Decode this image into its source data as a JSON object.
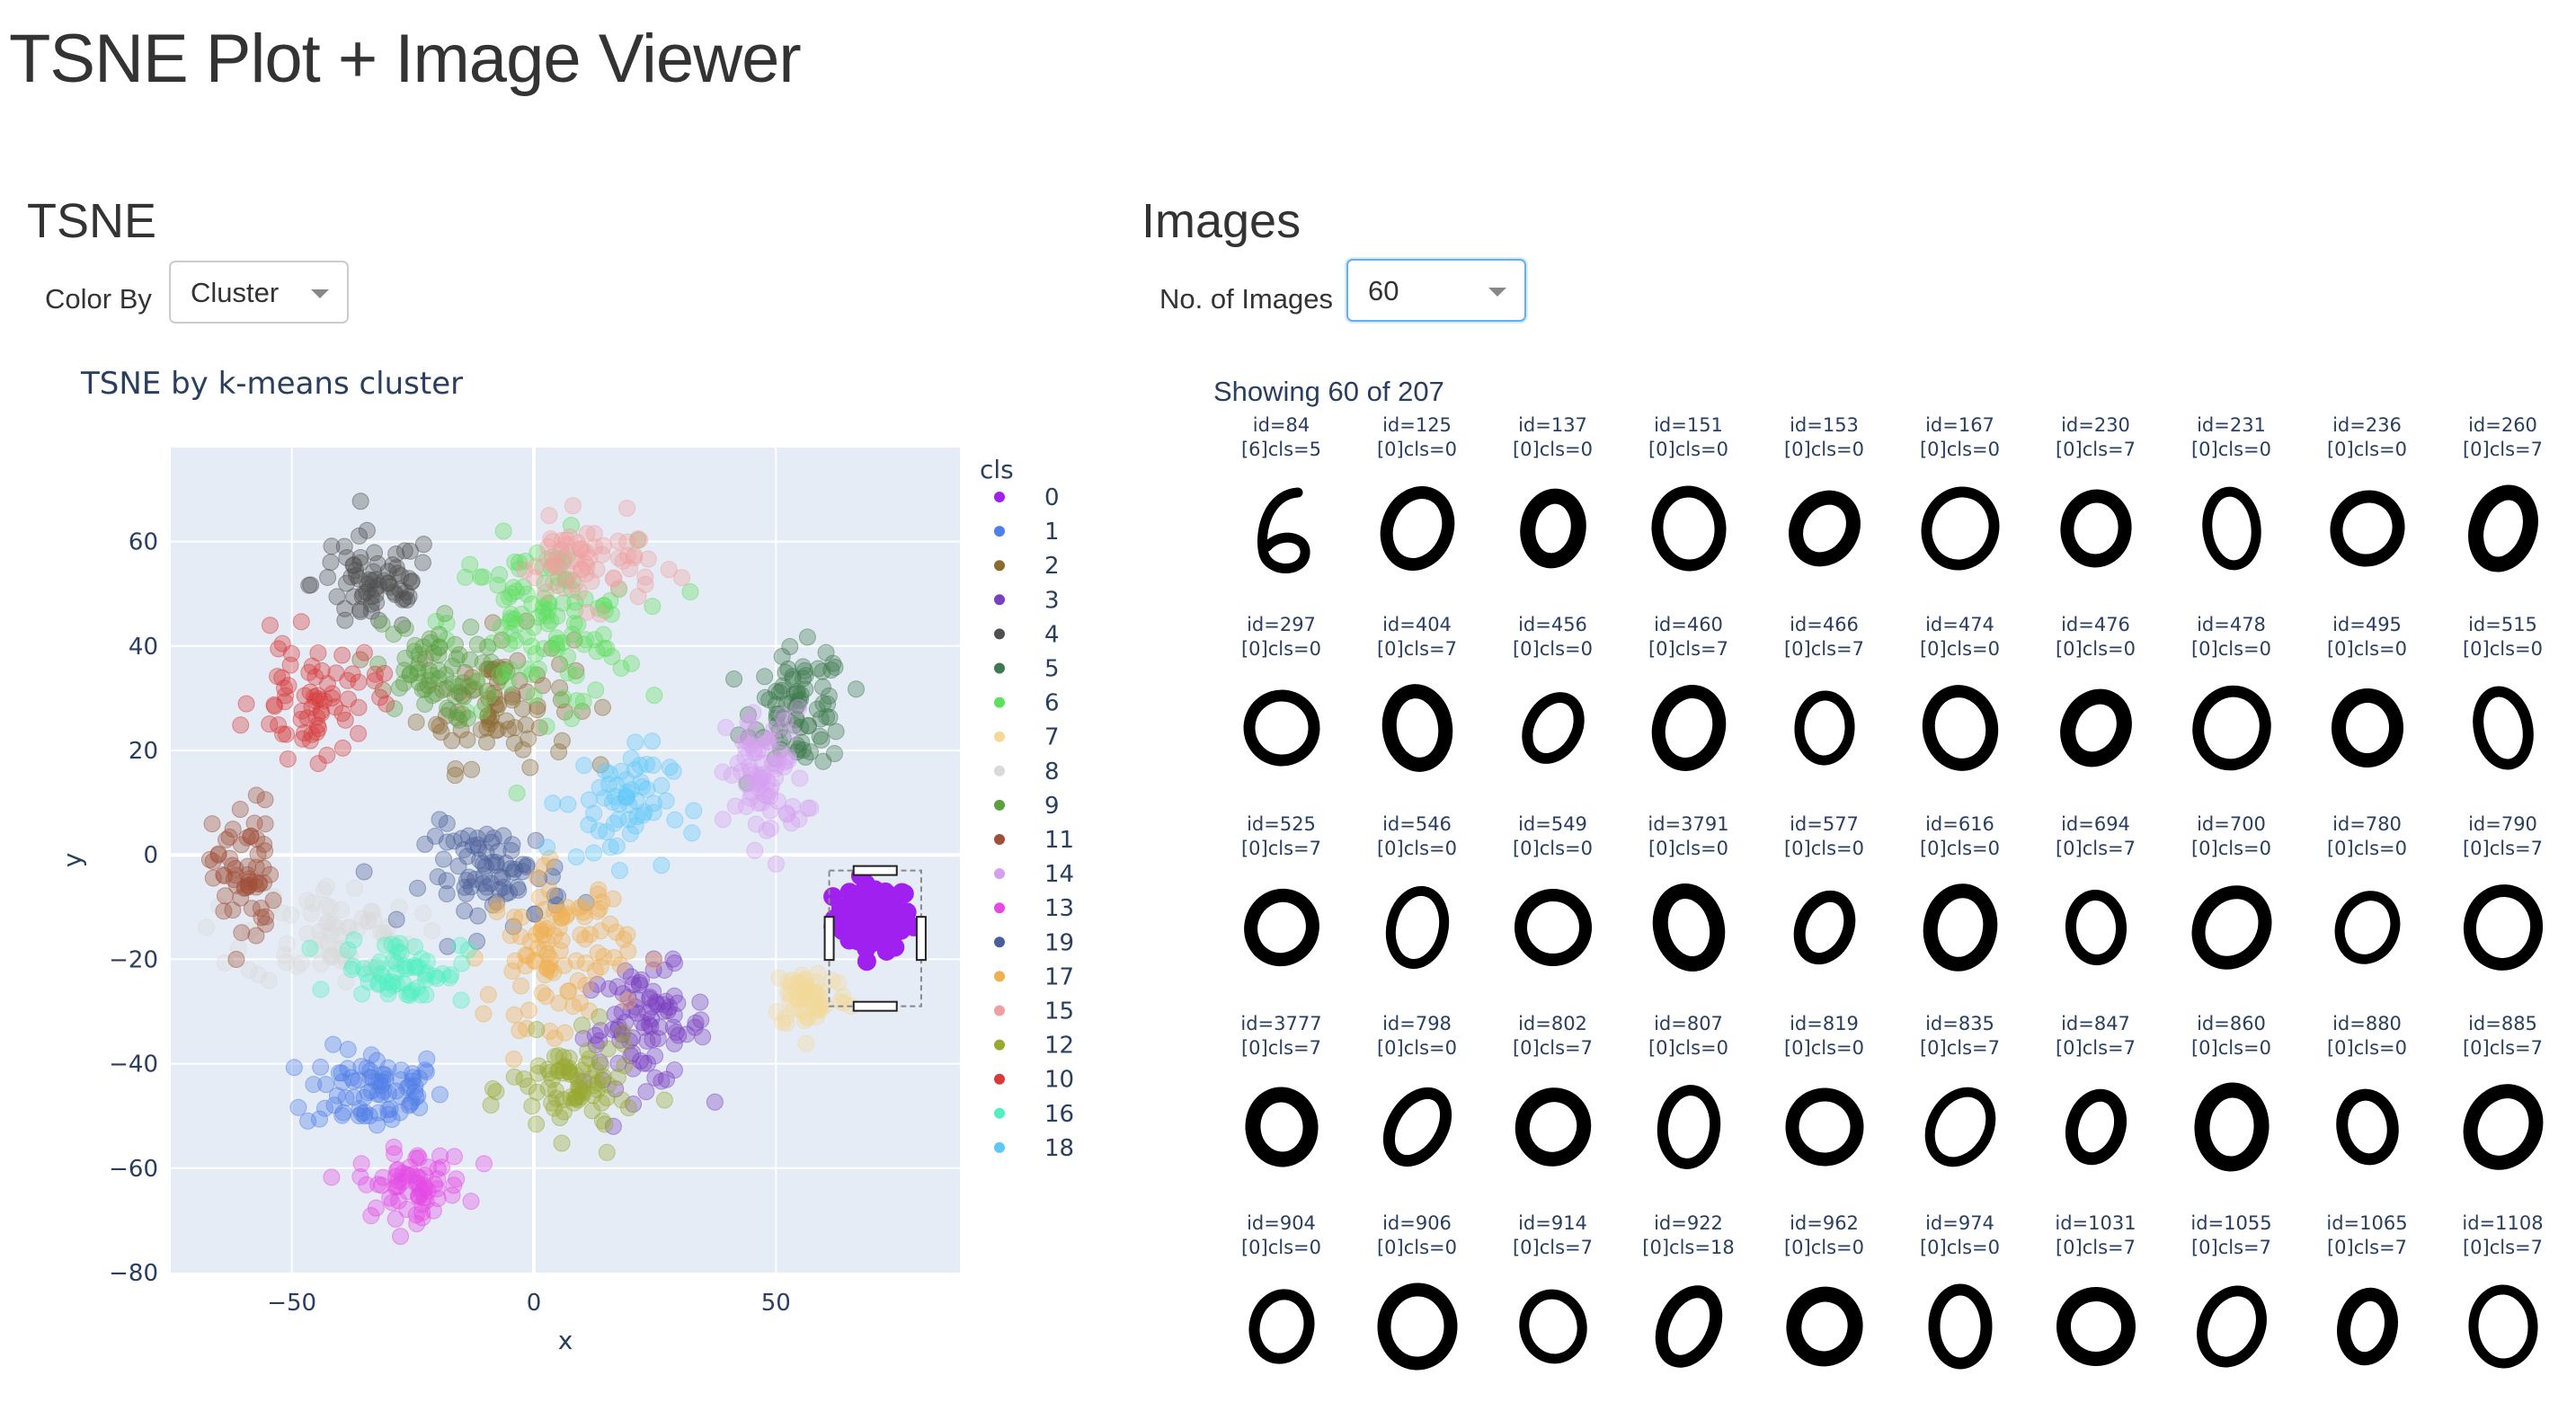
{
  "app": {
    "title": "TSNE Plot + Image Viewer"
  },
  "tsne": {
    "heading": "TSNE",
    "color_by_label": "Color By",
    "color_by_value": "Cluster"
  },
  "images": {
    "heading": "Images",
    "count_label": "No. of Images",
    "count_value": "60",
    "showing_text": "Showing 60 of 207",
    "items": [
      {
        "id": "id=84",
        "cls": "[6]cls=5",
        "digit": "6"
      },
      {
        "id": "id=125",
        "cls": "[0]cls=0",
        "digit": "0"
      },
      {
        "id": "id=137",
        "cls": "[0]cls=0",
        "digit": "0"
      },
      {
        "id": "id=151",
        "cls": "[0]cls=0",
        "digit": "0"
      },
      {
        "id": "id=153",
        "cls": "[0]cls=0",
        "digit": "0"
      },
      {
        "id": "id=167",
        "cls": "[0]cls=0",
        "digit": "0"
      },
      {
        "id": "id=230",
        "cls": "[0]cls=7",
        "digit": "0"
      },
      {
        "id": "id=231",
        "cls": "[0]cls=0",
        "digit": "0"
      },
      {
        "id": "id=236",
        "cls": "[0]cls=0",
        "digit": "0"
      },
      {
        "id": "id=260",
        "cls": "[0]cls=7",
        "digit": "0"
      },
      {
        "id": "id=297",
        "cls": "[0]cls=0",
        "digit": "0"
      },
      {
        "id": "id=404",
        "cls": "[0]cls=7",
        "digit": "0"
      },
      {
        "id": "id=456",
        "cls": "[0]cls=0",
        "digit": "0"
      },
      {
        "id": "id=460",
        "cls": "[0]cls=7",
        "digit": "0"
      },
      {
        "id": "id=466",
        "cls": "[0]cls=7",
        "digit": "0"
      },
      {
        "id": "id=474",
        "cls": "[0]cls=0",
        "digit": "0"
      },
      {
        "id": "id=476",
        "cls": "[0]cls=0",
        "digit": "0"
      },
      {
        "id": "id=478",
        "cls": "[0]cls=0",
        "digit": "0"
      },
      {
        "id": "id=495",
        "cls": "[0]cls=0",
        "digit": "0"
      },
      {
        "id": "id=515",
        "cls": "[0]cls=0",
        "digit": "0"
      },
      {
        "id": "id=525",
        "cls": "[0]cls=7",
        "digit": "0"
      },
      {
        "id": "id=546",
        "cls": "[0]cls=0",
        "digit": "0"
      },
      {
        "id": "id=549",
        "cls": "[0]cls=0",
        "digit": "0"
      },
      {
        "id": "id=3791",
        "cls": "[0]cls=0",
        "digit": "0"
      },
      {
        "id": "id=577",
        "cls": "[0]cls=0",
        "digit": "0"
      },
      {
        "id": "id=616",
        "cls": "[0]cls=0",
        "digit": "0"
      },
      {
        "id": "id=694",
        "cls": "[0]cls=7",
        "digit": "0"
      },
      {
        "id": "id=700",
        "cls": "[0]cls=0",
        "digit": "0"
      },
      {
        "id": "id=780",
        "cls": "[0]cls=0",
        "digit": "0"
      },
      {
        "id": "id=790",
        "cls": "[0]cls=7",
        "digit": "0"
      },
      {
        "id": "id=3777",
        "cls": "[0]cls=7",
        "digit": "0"
      },
      {
        "id": "id=798",
        "cls": "[0]cls=0",
        "digit": "0"
      },
      {
        "id": "id=802",
        "cls": "[0]cls=7",
        "digit": "0"
      },
      {
        "id": "id=807",
        "cls": "[0]cls=0",
        "digit": "0"
      },
      {
        "id": "id=819",
        "cls": "[0]cls=0",
        "digit": "0"
      },
      {
        "id": "id=835",
        "cls": "[0]cls=7",
        "digit": "0"
      },
      {
        "id": "id=847",
        "cls": "[0]cls=7",
        "digit": "0"
      },
      {
        "id": "id=860",
        "cls": "[0]cls=0",
        "digit": "0"
      },
      {
        "id": "id=880",
        "cls": "[0]cls=0",
        "digit": "0"
      },
      {
        "id": "id=885",
        "cls": "[0]cls=7",
        "digit": "0"
      },
      {
        "id": "id=904",
        "cls": "[0]cls=0",
        "digit": "0"
      },
      {
        "id": "id=906",
        "cls": "[0]cls=0",
        "digit": "0"
      },
      {
        "id": "id=914",
        "cls": "[0]cls=7",
        "digit": "0"
      },
      {
        "id": "id=922",
        "cls": "[0]cls=18",
        "digit": "0"
      },
      {
        "id": "id=962",
        "cls": "[0]cls=0",
        "digit": "0"
      },
      {
        "id": "id=974",
        "cls": "[0]cls=0",
        "digit": "0"
      },
      {
        "id": "id=1031",
        "cls": "[0]cls=7",
        "digit": "0"
      },
      {
        "id": "id=1055",
        "cls": "[0]cls=7",
        "digit": "0"
      },
      {
        "id": "id=1065",
        "cls": "[0]cls=7",
        "digit": "0"
      },
      {
        "id": "id=1108",
        "cls": "[0]cls=7",
        "digit": "0"
      }
    ]
  },
  "chart_data": {
    "type": "scatter",
    "title": "TSNE by k-means cluster",
    "xlabel": "x",
    "ylabel": "y",
    "xlim": [
      -75,
      88
    ],
    "ylim": [
      -80,
      78
    ],
    "xticks": [
      -50,
      0,
      50
    ],
    "yticks": [
      -80,
      -60,
      -40,
      -20,
      0,
      20,
      40,
      60
    ],
    "xtick_labels": [
      "−50",
      "0",
      "50"
    ],
    "ytick_labels": [
      "−80",
      "−60",
      "−40",
      "−20",
      "0",
      "20",
      "40",
      "60"
    ],
    "grid": true,
    "legend_title": "cls",
    "legend_placement": "right",
    "selection_box": {
      "x": [
        61,
        80
      ],
      "y": [
        -29,
        -3
      ]
    },
    "highlighted_cluster": "0",
    "series": [
      {
        "name": "0",
        "color": "#a020f0",
        "center": [
          70,
          -12
        ],
        "spread": [
          5,
          4
        ],
        "count": 80
      },
      {
        "name": "1",
        "color": "#4f7fe8",
        "center": [
          -33,
          -45
        ],
        "spread": [
          9,
          5
        ],
        "count": 80
      },
      {
        "name": "2",
        "color": "#8b6b30",
        "center": [
          -8,
          30
        ],
        "spread": [
          10,
          8
        ],
        "count": 90
      },
      {
        "name": "3",
        "color": "#7a3fc0",
        "center": [
          23,
          -33
        ],
        "spread": [
          8,
          7
        ],
        "count": 90
      },
      {
        "name": "4",
        "color": "#505050",
        "center": [
          -33,
          52
        ],
        "spread": [
          8,
          6
        ],
        "count": 70
      },
      {
        "name": "5",
        "color": "#3e7a4e",
        "center": [
          55,
          28
        ],
        "spread": [
          6,
          7
        ],
        "count": 80
      },
      {
        "name": "6",
        "color": "#5ee05e",
        "center": [
          2,
          44
        ],
        "spread": [
          12,
          10
        ],
        "count": 120
      },
      {
        "name": "7",
        "color": "#f3d99a",
        "center": [
          57,
          -27
        ],
        "spread": [
          5,
          4
        ],
        "count": 60
      },
      {
        "name": "8",
        "color": "#d9d9d9",
        "center": [
          -42,
          -15
        ],
        "spread": [
          11,
          6
        ],
        "count": 70
      },
      {
        "name": "9",
        "color": "#5aa040",
        "center": [
          -22,
          35
        ],
        "spread": [
          7,
          6
        ],
        "count": 60
      },
      {
        "name": "11",
        "color": "#a0503a",
        "center": [
          -60,
          -4
        ],
        "spread": [
          4,
          9
        ],
        "count": 60
      },
      {
        "name": "14",
        "color": "#d6a0f0",
        "center": [
          48,
          15
        ],
        "spread": [
          5,
          8
        ],
        "count": 80
      },
      {
        "name": "13",
        "color": "#e64ae6",
        "center": [
          -25,
          -63
        ],
        "spread": [
          7,
          4
        ],
        "count": 70
      },
      {
        "name": "19",
        "color": "#4a5f99",
        "center": [
          -8,
          -4
        ],
        "spread": [
          9,
          6
        ],
        "count": 80
      },
      {
        "name": "17",
        "color": "#f0b050",
        "center": [
          5,
          -18
        ],
        "spread": [
          9,
          9
        ],
        "count": 100
      },
      {
        "name": "15",
        "color": "#f0a0a0",
        "center": [
          11,
          56
        ],
        "spread": [
          9,
          5
        ],
        "count": 70
      },
      {
        "name": "12",
        "color": "#98a830",
        "center": [
          8,
          -45
        ],
        "spread": [
          8,
          6
        ],
        "count": 80
      },
      {
        "name": "10",
        "color": "#d83a3a",
        "center": [
          -45,
          30
        ],
        "spread": [
          8,
          7
        ],
        "count": 70
      },
      {
        "name": "16",
        "color": "#50f0c0",
        "center": [
          -27,
          -22
        ],
        "spread": [
          8,
          4
        ],
        "count": 60
      },
      {
        "name": "18",
        "color": "#60c8f8",
        "center": [
          17,
          10
        ],
        "spread": [
          7,
          7
        ],
        "count": 60
      }
    ]
  }
}
